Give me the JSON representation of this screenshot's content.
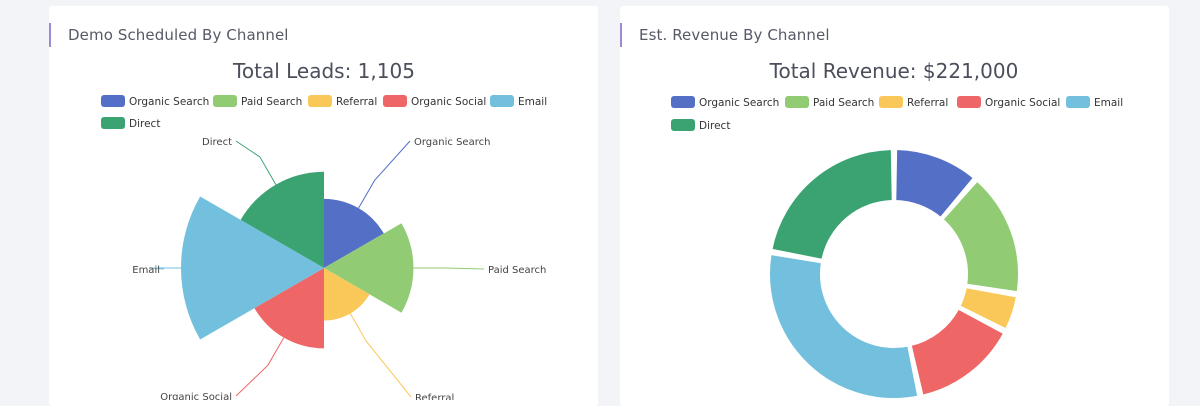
{
  "colors": {
    "organic_search": "#5470c6",
    "paid_search": "#91cc75",
    "referral": "#fac858",
    "organic_social": "#ee6666",
    "email": "#73c0de",
    "direct": "#3ba272",
    "accent_bar": "#9b8bd1"
  },
  "left_panel": {
    "header": "Demo Scheduled By Channel"
  },
  "right_panel": {
    "header": "Est. Revenue By Channel"
  },
  "chart_data": [
    {
      "type": "nightingale-rose",
      "title": "Total Leads: 1,105",
      "legend": [
        "Organic Search",
        "Paid Search",
        "Referral",
        "Organic Social",
        "Email",
        "Direct"
      ],
      "legend_position": "top",
      "categories": [
        "Organic Search",
        "Paid Search",
        "Referral",
        "Organic Social",
        "Email",
        "Direct"
      ],
      "values": [
        102,
        171,
        59,
        138,
        437,
        198
      ]
    },
    {
      "type": "donut",
      "title": "Total Revenue: $221,000",
      "legend": [
        "Organic Search",
        "Paid Search",
        "Referral",
        "Organic Social",
        "Email",
        "Direct"
      ],
      "legend_position": "top",
      "categories": [
        "Organic Search",
        "Paid Search",
        "Referral",
        "Organic Social",
        "Email",
        "Direct"
      ],
      "values": [
        25000,
        36000,
        11000,
        31000,
        69000,
        49000
      ]
    }
  ]
}
